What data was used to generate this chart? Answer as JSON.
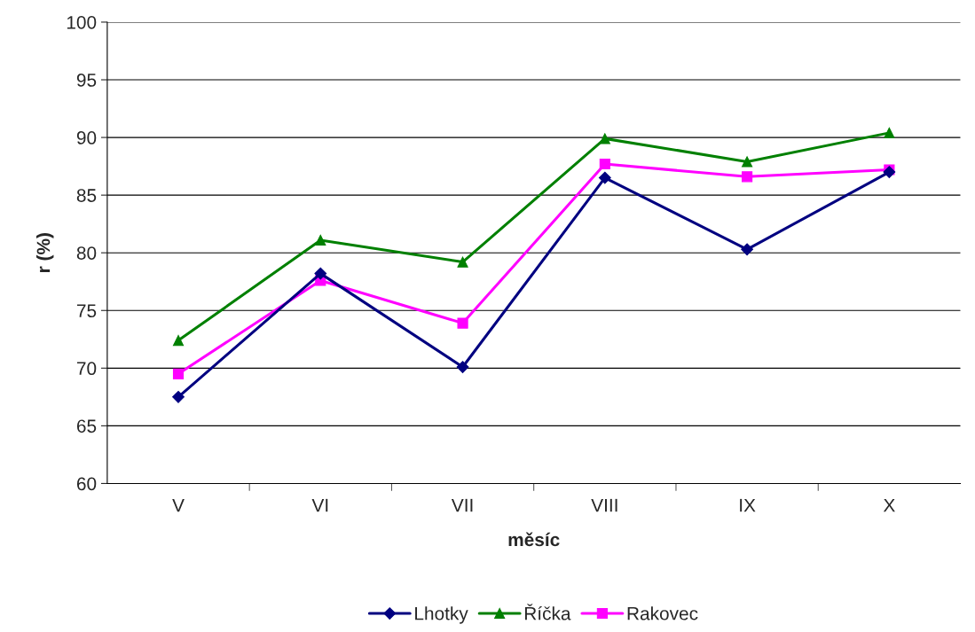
{
  "chart_data": {
    "type": "line",
    "xlabel": "měsíc",
    "ylabel": "r (%)",
    "categories": [
      "V",
      "VI",
      "VII",
      "VIII",
      "IX",
      "X"
    ],
    "series": [
      {
        "name": "Lhotky",
        "color": "#000080",
        "marker": "diamond",
        "values": [
          67.5,
          78.2,
          70.1,
          86.5,
          80.3,
          87.0
        ]
      },
      {
        "name": "Říčka",
        "color": "#008000",
        "marker": "triangle",
        "values": [
          72.4,
          81.1,
          79.2,
          89.9,
          87.9,
          90.4
        ]
      },
      {
        "name": "Rakovec",
        "color": "#ff00ff",
        "marker": "square",
        "values": [
          69.5,
          77.6,
          73.9,
          87.7,
          86.6,
          87.2
        ]
      }
    ],
    "ylim": [
      60,
      100
    ],
    "yticks": [
      60,
      65,
      70,
      75,
      80,
      85,
      90,
      95,
      100
    ],
    "grid": "y",
    "legend": "bottom",
    "line_style": "solid"
  }
}
